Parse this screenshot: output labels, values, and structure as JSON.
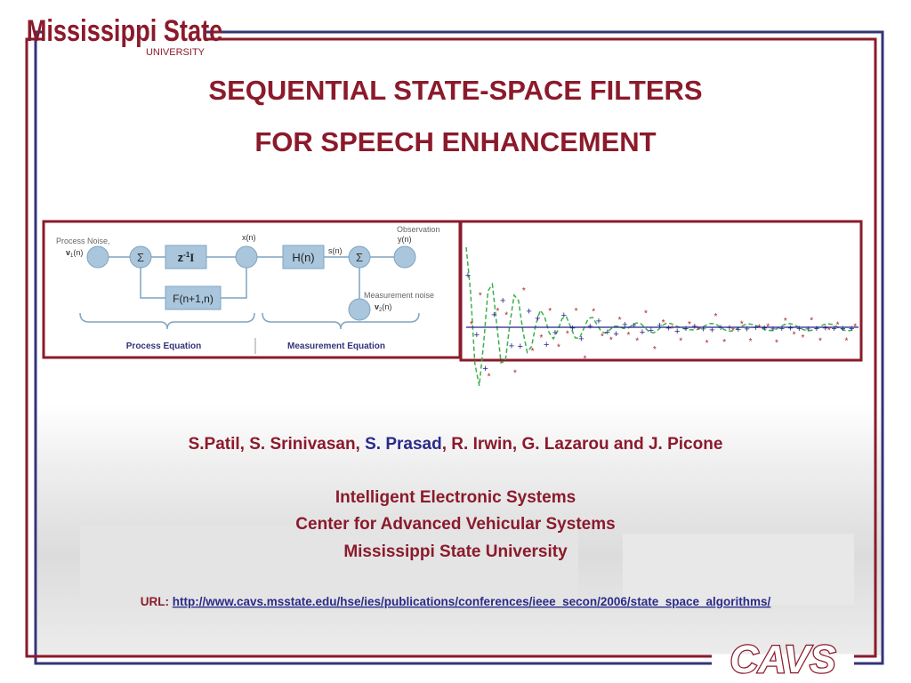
{
  "header": {
    "logo": {
      "name": "Mississippi State",
      "sub": "UNIVERSITY"
    },
    "title_lines": [
      "SEQUENTIAL STATE-SPACE FILTERS",
      "FOR SPEECH ENHANCEMENT"
    ]
  },
  "diagram": {
    "process_noise": "Process Noise,",
    "v1": {
      "base": "v",
      "sub": "1",
      "tail": "(n)"
    },
    "sum": "Σ",
    "delay": {
      "base": "z",
      "sup": "-1",
      "tail": "I"
    },
    "x": "x(n)",
    "h": "H(n)",
    "s": "s(n)",
    "observation": "Observation",
    "y": "y(n)",
    "f": "F(n+1,n)",
    "measurement_noise": "Measurement noise",
    "v2": {
      "base": "v",
      "sub": "2",
      "tail": "(n)"
    },
    "process_equation": "Process Equation",
    "measurement_equation": "Measurement Equation"
  },
  "authors": [
    "S.Patil, S. Srinivasan, ",
    "S. Prasad",
    ", R. Irwin, G. Lazarou and J. Picone"
  ],
  "affiliation": [
    "Intelligent Electronic Systems",
    "Center for Advanced Vehicular Systems",
    "Mississippi State University"
  ],
  "url": {
    "label": "URL:",
    "link": "http://www.cavs.msstate.edu/hse/ies/publications/conferences/ieee_secon/2006/state_space_algorithms/"
  },
  "footer_logo": "CAVS"
}
